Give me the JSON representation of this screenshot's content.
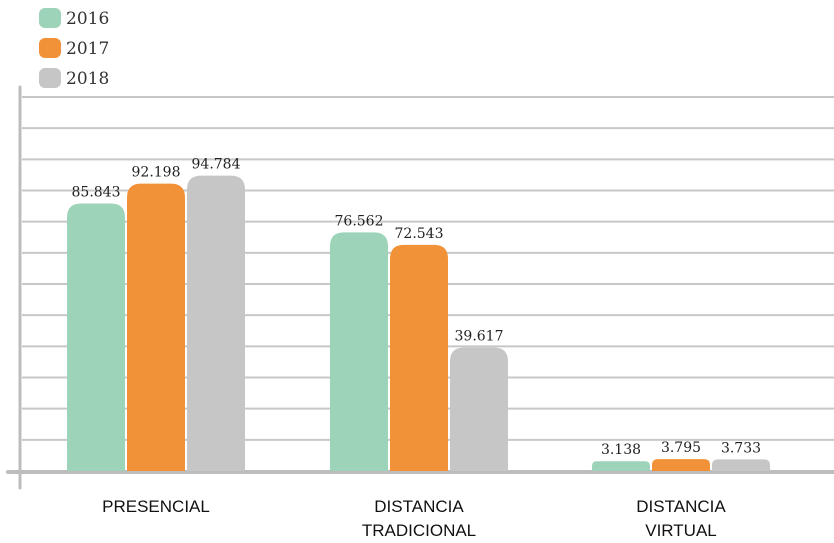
{
  "chart_data": {
    "type": "bar",
    "categories": [
      [
        "PRESENCIAL"
      ],
      [
        "DISTANCIA",
        "TRADICIONAL"
      ],
      [
        "DISTANCIA",
        "VIRTUAL"
      ]
    ],
    "series": [
      {
        "name": "2016",
        "color": "#9dd3b8",
        "values": [
          85843,
          76562,
          3138
        ],
        "labels": [
          "85.843",
          "76.562",
          "3.138"
        ]
      },
      {
        "name": "2017",
        "color": "#f29238",
        "values": [
          92198,
          72543,
          3795
        ],
        "labels": [
          "92.198",
          "72.543",
          "3.795"
        ]
      },
      {
        "name": "2018",
        "color": "#c6c6c6",
        "values": [
          94784,
          39617,
          3733
        ],
        "labels": [
          "94.784",
          "39.617",
          "3.733"
        ]
      }
    ],
    "ylim": [
      0,
      120000
    ],
    "grid": true,
    "legend_position": "top-left"
  }
}
